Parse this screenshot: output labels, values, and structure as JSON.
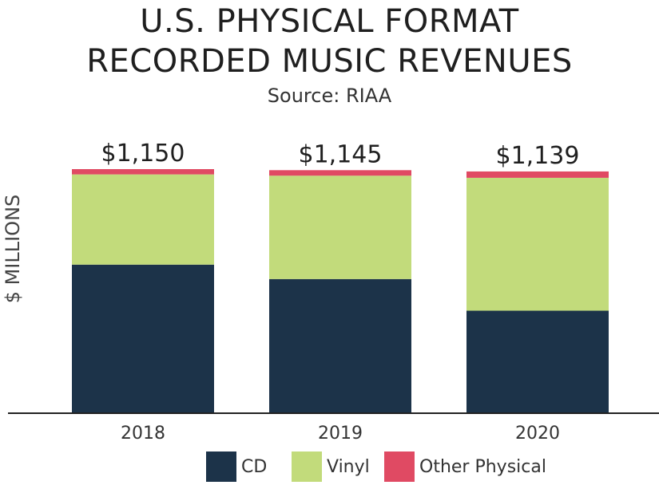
{
  "chart_data": {
    "type": "bar",
    "stacked": true,
    "title_lines": [
      "U.S. PHYSICAL FORMAT",
      "RECORDED MUSIC REVENUES"
    ],
    "subtitle": "Source: RIAA",
    "ylabel": "$ MILLIONS",
    "xlabel": "",
    "categories": [
      "2018",
      "2019",
      "2020"
    ],
    "totals_labels": [
      "$1,150",
      "$1,145",
      "$1,139"
    ],
    "ylim": [
      0,
      1150
    ],
    "grid": false,
    "legend_position": "bottom",
    "series": [
      {
        "name": "CD",
        "color": "#1c3349",
        "values": [
          700,
          632,
          483
        ]
      },
      {
        "name": "Vinyl",
        "color": "#c2db7b",
        "values": [
          425,
          487,
          626
        ]
      },
      {
        "name": "Other Physical",
        "color": "#e04a63",
        "values": [
          25,
          26,
          30
        ]
      }
    ]
  }
}
